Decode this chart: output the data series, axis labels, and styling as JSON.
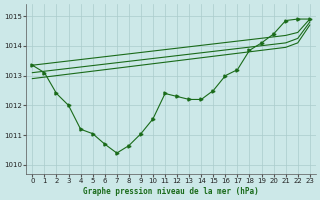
{
  "bg_color": "#cce8e8",
  "grid_color": "#aacccc",
  "line_color": "#1a6b1a",
  "xlabel": "Graphe pression niveau de la mer (hPa)",
  "ylim": [
    1009.7,
    1015.4
  ],
  "xlim": [
    -0.5,
    23.5
  ],
  "yticks": [
    1010,
    1011,
    1012,
    1013,
    1014,
    1015
  ],
  "xticks": [
    0,
    1,
    2,
    3,
    4,
    5,
    6,
    7,
    8,
    9,
    10,
    11,
    12,
    13,
    14,
    15,
    16,
    17,
    18,
    19,
    20,
    21,
    22,
    23
  ],
  "series1_x": [
    0,
    1,
    2,
    3,
    4,
    5,
    6,
    7,
    8,
    9,
    10,
    11,
    12,
    13,
    14,
    15,
    16,
    17,
    18,
    19,
    20,
    21,
    22,
    23
  ],
  "series1_y": [
    1013.35,
    1013.1,
    1012.4,
    1012.0,
    1011.2,
    1011.05,
    1010.7,
    1010.4,
    1010.65,
    1011.05,
    1011.55,
    1012.4,
    1012.3,
    1012.2,
    1012.2,
    1012.5,
    1013.0,
    1013.2,
    1013.85,
    1014.1,
    1014.4,
    1014.85,
    1014.9,
    1014.9
  ],
  "series2_x": [
    0,
    21,
    22,
    23
  ],
  "series2_y": [
    1013.35,
    1014.35,
    1014.45,
    1014.9
  ],
  "series3_x": [
    0,
    21,
    22,
    23
  ],
  "series3_y": [
    1013.1,
    1014.1,
    1014.25,
    1014.8
  ],
  "series4_x": [
    0,
    21,
    22,
    23
  ],
  "series4_y": [
    1012.9,
    1013.95,
    1014.1,
    1014.7
  ]
}
